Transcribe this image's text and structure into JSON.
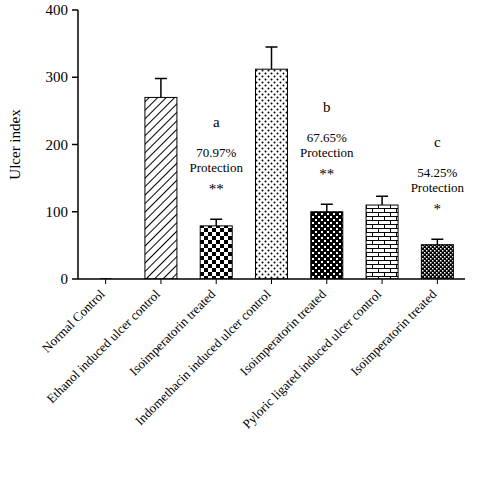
{
  "chart_data": {
    "type": "bar",
    "y_label": "Ulcer index",
    "categories": [
      "Normal Control",
      "Ethanol induced ulcer control",
      "Isoimperatorin treated",
      "Indomethacin induced ulcer control",
      "Isoimperatorin treated",
      "Pyloric ligated induced ulcer control",
      "Isoimperatorin treated"
    ],
    "values": [
      0,
      270,
      79,
      312,
      100,
      110,
      51
    ],
    "errors": [
      0,
      28,
      10,
      33,
      11,
      13,
      8
    ],
    "color": "#000000",
    "ylim": [
      0,
      400
    ],
    "yticks": [
      0,
      100,
      200,
      300,
      400
    ],
    "grid": false,
    "annotations": [
      null,
      null,
      {
        "letter": "a",
        "percent": "70.97%",
        "label": "Protection",
        "stars": "**"
      },
      null,
      {
        "letter": "b",
        "percent": "67.65%",
        "label": "Protection",
        "stars": "**"
      },
      null,
      {
        "letter": "c",
        "percent": "54.25%",
        "label": "Protection",
        "stars": "*"
      }
    ]
  }
}
